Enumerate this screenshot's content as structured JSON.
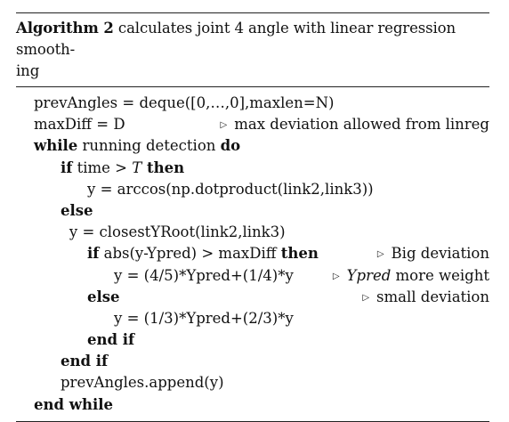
{
  "caption": {
    "label": "Algorithm 2",
    "text_line1": " calculates joint 4 angle with linear regression smooth-",
    "text_line2": "ing"
  },
  "lines": [
    {
      "indent": 0,
      "parts": [
        {
          "t": "prevAngles = deque([0,…,0],maxlen=N)",
          "k": "n"
        }
      ]
    },
    {
      "indent": 0,
      "parts": [
        {
          "t": "maxDiff = D",
          "k": "n"
        }
      ],
      "comment": "max deviation allowed from linreg"
    },
    {
      "indent": 0,
      "parts": [
        {
          "t": "while",
          "k": "b"
        },
        {
          "t": " running detection ",
          "k": "n"
        },
        {
          "t": "do",
          "k": "b"
        }
      ]
    },
    {
      "indent": 1,
      "parts": [
        {
          "t": "if",
          "k": "b"
        },
        {
          "t": " time > ",
          "k": "n"
        },
        {
          "t": "T",
          "k": "i"
        },
        {
          "t": " then",
          "k": "b"
        }
      ]
    },
    {
      "indent": 2,
      "parts": [
        {
          "t": "y = arccos(np.dotproduct(link2,link3))",
          "k": "n"
        }
      ]
    },
    {
      "indent": 1,
      "parts": [
        {
          "t": "else",
          "k": "b"
        }
      ]
    },
    {
      "indent": 1.33,
      "parts": [
        {
          "t": "y = closestYRoot(link2,link3)",
          "k": "n"
        }
      ]
    },
    {
      "indent": 2,
      "parts": [
        {
          "t": "if",
          "k": "b"
        },
        {
          "t": " abs(y-Ypred) > maxDiff ",
          "k": "n"
        },
        {
          "t": "then",
          "k": "b"
        }
      ],
      "comment": "Big deviation"
    },
    {
      "indent": 3,
      "parts": [
        {
          "t": "y = (4/5)*Ypred+(1/4)*y",
          "k": "n"
        }
      ],
      "comment_parts": [
        {
          "t": "Ypred",
          "k": "i"
        },
        {
          "t": " more weight",
          "k": "n"
        }
      ]
    },
    {
      "indent": 2,
      "parts": [
        {
          "t": "else",
          "k": "b"
        }
      ],
      "comment": "small deviation"
    },
    {
      "indent": 3,
      "parts": [
        {
          "t": "y = (1/3)*Ypred+(2/3)*y",
          "k": "n"
        }
      ]
    },
    {
      "indent": 2,
      "parts": [
        {
          "t": "end if",
          "k": "b"
        }
      ]
    },
    {
      "indent": 1,
      "parts": [
        {
          "t": "end if",
          "k": "b"
        }
      ]
    },
    {
      "indent": 1,
      "parts": [
        {
          "t": "prevAngles.append(y)",
          "k": "n"
        }
      ]
    },
    {
      "indent": 0,
      "parts": [
        {
          "t": "end while",
          "k": "b"
        }
      ]
    }
  ]
}
